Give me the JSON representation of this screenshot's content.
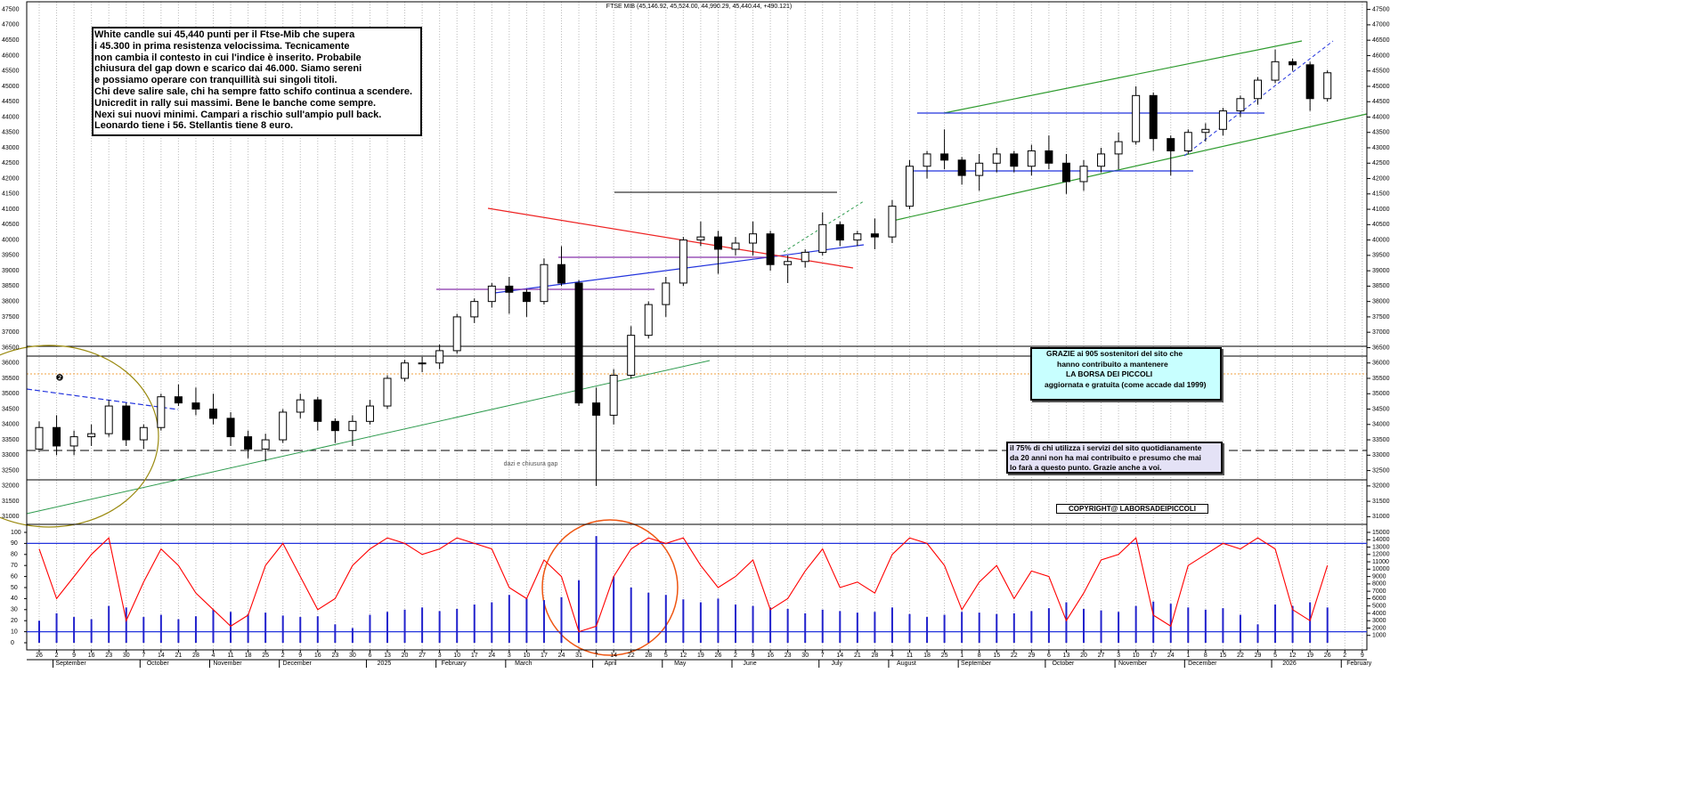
{
  "chart_data": {
    "type": "candlestick",
    "title": "FTSE MIB (45,146.92, 45,524.00, 44,990.29, 45,440.44, +490.121)",
    "categories": [
      "26",
      "2",
      "9",
      "16",
      "23",
      "30",
      "7",
      "14",
      "21",
      "28",
      "4",
      "11",
      "18",
      "25",
      "2",
      "9",
      "16",
      "23",
      "30",
      "6",
      "13",
      "20",
      "27",
      "3",
      "10",
      "17",
      "24",
      "3",
      "10",
      "17",
      "24",
      "31",
      "7",
      "14",
      "22",
      "28",
      "5",
      "12",
      "19",
      "26",
      "2",
      "9",
      "16",
      "23",
      "30",
      "7",
      "14",
      "21",
      "28",
      "4",
      "11",
      "18",
      "25",
      "1",
      "8",
      "15",
      "22",
      "29",
      "6",
      "13",
      "20",
      "27",
      "3",
      "10",
      "17",
      "24",
      "1",
      "8",
      "15",
      "22",
      "29",
      "5",
      "12",
      "19",
      "26",
      "2",
      "9"
    ],
    "months": [
      null,
      "September",
      null,
      null,
      null,
      null,
      "October",
      null,
      null,
      null,
      "November",
      null,
      null,
      null,
      "December",
      null,
      null,
      null,
      null,
      "2025",
      null,
      null,
      null,
      "February",
      null,
      null,
      null,
      "March",
      null,
      null,
      null,
      null,
      "April",
      null,
      null,
      null,
      "May",
      null,
      null,
      null,
      "June",
      null,
      null,
      null,
      null,
      "July",
      null,
      null,
      null,
      "August",
      null,
      null,
      null,
      "September",
      null,
      null,
      null,
      null,
      "October",
      null,
      null,
      null,
      "November",
      null,
      null,
      null,
      "December",
      null,
      null,
      null,
      null,
      "2026",
      null,
      null,
      null,
      "February",
      null
    ],
    "open": [
      33200,
      33900,
      33300,
      33600,
      33700,
      34600,
      33500,
      33900,
      34900,
      34700,
      34500,
      34200,
      33600,
      33200,
      33500,
      34400,
      34800,
      34100,
      33800,
      34100,
      34600,
      35500,
      36000,
      36000,
      36400,
      37500,
      38000,
      38500,
      38300,
      38000,
      39200,
      38600,
      34700,
      34300,
      35600,
      36900,
      37900,
      38600,
      40000,
      40100,
      39700,
      39900,
      40200,
      39200,
      39300,
      39600,
      40500,
      40000,
      40200,
      40100,
      41100,
      42400,
      42800,
      42600,
      42100,
      42500,
      42800,
      42400,
      42900,
      42500,
      41900,
      42400,
      42800,
      43200,
      44700,
      43300,
      42900,
      43500,
      43600,
      44200,
      44600,
      45200,
      45800,
      45700,
      44600,
      null,
      null
    ],
    "high": [
      34100,
      34300,
      33800,
      34000,
      34800,
      34700,
      34000,
      35000,
      35300,
      35200,
      35000,
      34400,
      33800,
      33700,
      34500,
      35000,
      34900,
      34200,
      34300,
      34800,
      35600,
      36100,
      36200,
      36600,
      37600,
      38100,
      38600,
      38800,
      38400,
      39400,
      39800,
      38700,
      35200,
      35800,
      37200,
      38000,
      38800,
      40100,
      40600,
      40300,
      40100,
      40600,
      40300,
      39500,
      39700,
      40900,
      40600,
      40300,
      40700,
      41300,
      42600,
      42900,
      43600,
      42700,
      42800,
      43000,
      42900,
      43100,
      43400,
      42800,
      42600,
      43000,
      43500,
      45000,
      44800,
      43400,
      43600,
      43800,
      44300,
      44700,
      45300,
      46200,
      45900,
      45800,
      45524,
      null,
      null
    ],
    "low": [
      33100,
      33000,
      33000,
      33300,
      33600,
      33300,
      33200,
      33800,
      34600,
      34300,
      34000,
      33300,
      32900,
      32800,
      33400,
      34200,
      33800,
      33400,
      33300,
      34000,
      34500,
      35400,
      35700,
      35800,
      36300,
      37300,
      37800,
      37600,
      37500,
      37900,
      38500,
      34600,
      32000,
      34000,
      35500,
      36800,
      37500,
      38500,
      39800,
      38900,
      39500,
      39500,
      39000,
      38600,
      39100,
      39500,
      39800,
      39800,
      39700,
      39900,
      41000,
      42000,
      42300,
      41800,
      41600,
      42200,
      42200,
      42100,
      42300,
      41500,
      41600,
      42200,
      42300,
      43100,
      42900,
      42100,
      42800,
      43200,
      43400,
      44000,
      44400,
      45100,
      45500,
      44200,
      44500,
      null,
      null
    ],
    "close": [
      33900,
      33300,
      33600,
      33700,
      34600,
      33500,
      33900,
      34900,
      34700,
      34500,
      34200,
      33600,
      33200,
      33500,
      34400,
      34800,
      34100,
      33800,
      34100,
      34600,
      35500,
      36000,
      36000,
      36400,
      37500,
      38000,
      38500,
      38300,
      38000,
      39200,
      38600,
      34700,
      34300,
      35600,
      36900,
      37900,
      38600,
      40000,
      40100,
      39700,
      39900,
      40200,
      39200,
      39300,
      39600,
      40500,
      40000,
      40200,
      40100,
      41100,
      42400,
      42800,
      42600,
      42100,
      42500,
      42800,
      42400,
      42900,
      42500,
      41900,
      42400,
      42800,
      43200,
      44700,
      43300,
      42900,
      43500,
      43600,
      44200,
      44600,
      45200,
      45800,
      45700,
      44600,
      45440,
      null,
      null
    ],
    "oscillator": [
      85,
      40,
      60,
      80,
      95,
      20,
      55,
      85,
      70,
      45,
      30,
      15,
      25,
      70,
      90,
      60,
      30,
      40,
      70,
      85,
      95,
      90,
      80,
      85,
      95,
      90,
      85,
      50,
      40,
      75,
      60,
      10,
      15,
      60,
      85,
      95,
      90,
      95,
      70,
      50,
      60,
      75,
      30,
      40,
      65,
      85,
      50,
      55,
      45,
      80,
      95,
      90,
      70,
      30,
      55,
      70,
      40,
      65,
      60,
      20,
      45,
      75,
      80,
      95,
      25,
      15,
      70,
      80,
      90,
      85,
      95,
      85,
      30,
      20,
      70,
      null,
      null
    ],
    "volume": [
      3000,
      4000,
      3500,
      3200,
      5000,
      4800,
      3500,
      3800,
      3200,
      3600,
      4500,
      4200,
      3900,
      4100,
      3700,
      3500,
      3600,
      2500,
      2000,
      3800,
      4200,
      4500,
      4800,
      4300,
      4600,
      5200,
      5500,
      6500,
      6000,
      5800,
      6200,
      8500,
      14500,
      9000,
      7500,
      6800,
      6500,
      5900,
      5500,
      6000,
      5200,
      5000,
      4800,
      4600,
      4000,
      4500,
      4300,
      4100,
      4200,
      4800,
      3900,
      3500,
      3800,
      4200,
      4100,
      3900,
      4000,
      4300,
      4700,
      5500,
      4600,
      4400,
      4200,
      5000,
      5600,
      5300,
      4800,
      4500,
      4700,
      3800,
      2500,
      5200,
      5000,
      5500,
      4800,
      null,
      null
    ],
    "oscillator_color": "#ff0000",
    "volume_color": "#2222cc",
    "ylim": [
      30750,
      47750
    ],
    "yticks": [
      31000,
      31500,
      32000,
      32500,
      33000,
      33500,
      34000,
      34500,
      35000,
      35500,
      36000,
      36500,
      37000,
      37500,
      38000,
      38500,
      39000,
      39500,
      40000,
      40500,
      41000,
      41500,
      42000,
      42500,
      43000,
      43500,
      44000,
      44500,
      45000,
      45500,
      46000,
      46500,
      47000,
      47500
    ],
    "y3lim": [
      0,
      100
    ],
    "y3ticks": [
      0,
      10,
      20,
      30,
      40,
      50,
      60,
      70,
      80,
      90,
      100
    ],
    "oscillator_levels": [
      10,
      90
    ],
    "y2lim": [
      0,
      15000
    ],
    "y2ticks": [
      1000,
      2000,
      3000,
      4000,
      5000,
      6000,
      7000,
      8000,
      9000,
      10000,
      11000,
      12000,
      13000,
      14000,
      15000
    ],
    "grid": true,
    "annotations": {
      "commentary": [
        "White candle sui 45,440 punti per il Ftse-Mib che supera",
        "i 45.300 in prima resistenza velocissima. Tecnicamente",
        "non cambia il contesto in cui l'indice è inserito. Probabile",
        "chiusura del gap down e scarico dai 46.000. Siamo sereni",
        "e possiamo operare con tranquillità sui singoli titoli.",
        "Chi deve salire sale, chi ha sempre fatto schifo continua a scendere.",
        "Unicredit in rally sui massimi. Bene le banche come sempre.",
        "Nexi sui nuovi minimi.  Campari a rischio sull'ampio pull back.",
        "Leonardo tiene i 56. Stellantis tiene 8 euro."
      ],
      "thanks": [
        "GRAZIE ai 905  sostenitori del sito che",
        "hanno contribuito a mantenere",
        "LA BORSA DEI PICCOLI",
        "aggiornata e gratuita (come accade dal 1999)"
      ],
      "note": [
        "il 75%  di chi utilizza i servizi del sito quotidianamente",
        "da 20 anni non ha mai contribuito e presumo che mai",
        "lo farà a questo punto. Grazie anche a voi."
      ],
      "copyright": "COPYRIGHT@ LABORSADEIPICCOLI",
      "gap_label": "dazi e chiusura gap",
      "marker": "❷"
    }
  }
}
